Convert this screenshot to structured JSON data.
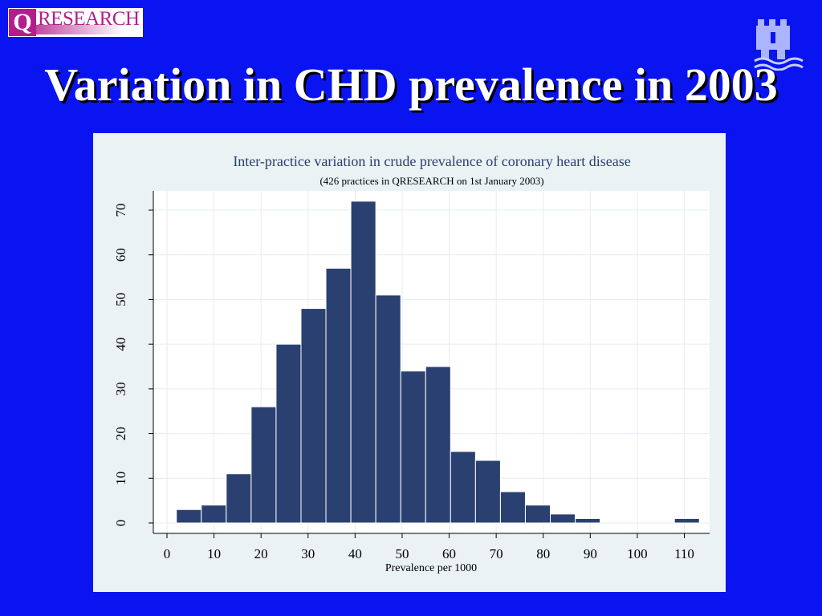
{
  "logo": {
    "letter": "Q",
    "word": "RESEARCH"
  },
  "slide": {
    "title": "Variation in CHD prevalence in 2003"
  },
  "icons": {
    "crest": "castle-crest-icon"
  },
  "colors": {
    "background": "#0a14f0",
    "bar": "#2a4070",
    "panel": "#eaf2f3",
    "title": "#ffffff"
  },
  "chart_data": {
    "type": "bar",
    "title": "Inter-practice variation in crude prevalence of coronary heart disease",
    "subtitle": "(426 practices in QRESEARCH on 1st January 2003)",
    "xlabel": "Prevalence per 1000",
    "ylabel": "",
    "xlim": [
      0,
      113
    ],
    "ylim": [
      0,
      72
    ],
    "xticks": [
      0,
      10,
      20,
      30,
      40,
      50,
      60,
      70,
      80,
      90,
      100,
      110
    ],
    "yticks": [
      0,
      10,
      20,
      30,
      40,
      50,
      60,
      70
    ],
    "grid": true,
    "bin_width": 5.3,
    "bins": [
      {
        "start": 2.0,
        "value": 3
      },
      {
        "start": 7.3,
        "value": 4
      },
      {
        "start": 12.6,
        "value": 11
      },
      {
        "start": 17.9,
        "value": 26
      },
      {
        "start": 23.2,
        "value": 40
      },
      {
        "start": 28.5,
        "value": 48
      },
      {
        "start": 33.8,
        "value": 57
      },
      {
        "start": 39.1,
        "value": 72
      },
      {
        "start": 44.4,
        "value": 51
      },
      {
        "start": 49.7,
        "value": 34
      },
      {
        "start": 55.0,
        "value": 35
      },
      {
        "start": 60.3,
        "value": 16
      },
      {
        "start": 65.6,
        "value": 14
      },
      {
        "start": 70.9,
        "value": 7
      },
      {
        "start": 76.2,
        "value": 4
      },
      {
        "start": 81.5,
        "value": 2
      },
      {
        "start": 86.8,
        "value": 1
      },
      {
        "start": 107.9,
        "value": 1
      }
    ]
  }
}
